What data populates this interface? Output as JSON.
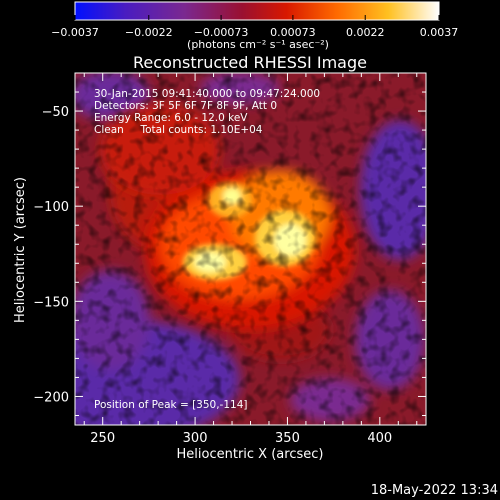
{
  "colorbar": {
    "ticks": [
      "-0.0037",
      "-0.0022",
      "-0.00073",
      "0.00073",
      "0.0022",
      "0.0037"
    ],
    "tick_values": [
      -0.0037,
      -0.0022,
      -0.00073,
      0.00073,
      0.0022,
      0.0037
    ],
    "range": [
      -0.0037,
      0.0037
    ],
    "units_label": "(photons cm⁻² s⁻¹ asec⁻²)",
    "colors": [
      "#0010ff",
      "#5a1fb0",
      "#7a2a90",
      "#a01010",
      "#ff3000",
      "#ff9000",
      "#ffff40",
      "#ffffff"
    ]
  },
  "chart_data": {
    "type": "heatmap",
    "title": "Reconstructed RHESSI Image",
    "xlabel": "Heliocentric X (arcsec)",
    "ylabel": "Heliocentric Y (arcsec)",
    "xlim": [
      235,
      425
    ],
    "ylim": [
      -215,
      -30
    ],
    "xticks": [
      250,
      300,
      350,
      400
    ],
    "yticks": [
      -50,
      -100,
      -150,
      -200
    ],
    "peak": [
      350,
      -114
    ],
    "annotations": [
      "30-Jan-2015 09:41:40.000 to 09:47:24.000",
      "Detectors: 3F 5F 6F 7F 8F 9F, Att 0",
      "Energy Range: 6.0 - 12.0 keV",
      "Clean     Total counts: 1.10E+04"
    ],
    "peak_label": "Position of Peak = [350,-114]",
    "timestamp": "18-May-2022 13:34"
  }
}
